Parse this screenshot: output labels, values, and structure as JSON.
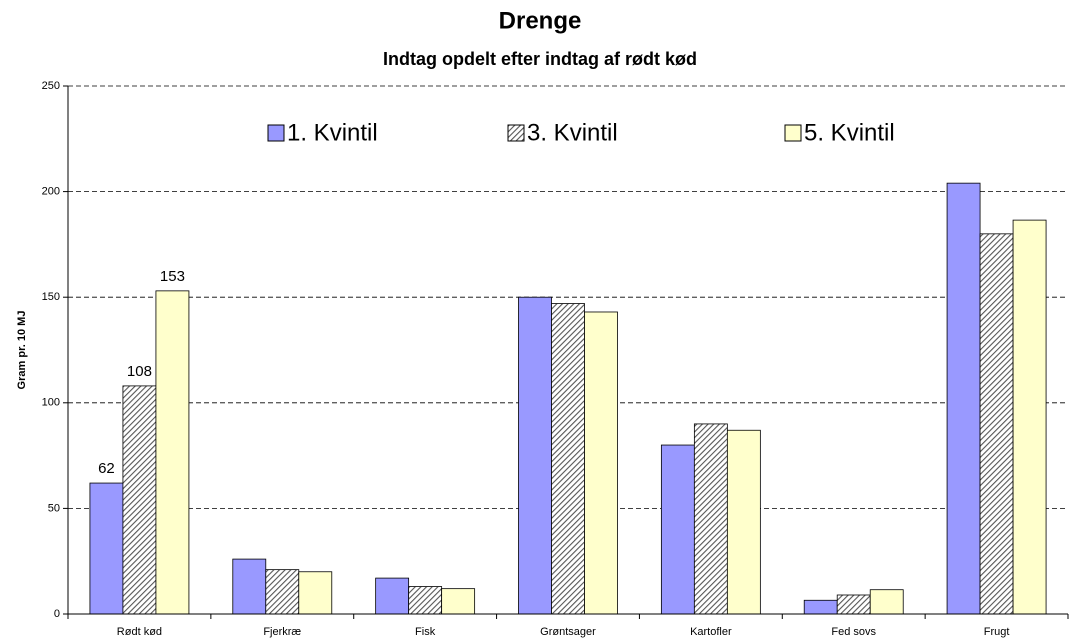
{
  "chart_data": {
    "type": "bar",
    "title": "Drenge",
    "subtitle": "Indtag opdelt efter indtag af rødt kød",
    "y_label": "Gram pr. 10 MJ",
    "categories": [
      "Rødt kød",
      "Fjerkræ",
      "Fisk",
      "Grøntsager",
      "Kartofler",
      "Fed sovs",
      "Frugt"
    ],
    "series": [
      {
        "name": "1. Kvintil",
        "color": "#9999ff",
        "values": [
          62,
          26,
          17,
          150,
          80,
          6.5,
          204
        ],
        "value_labels": [
          "62",
          null,
          null,
          null,
          null,
          null,
          null
        ]
      },
      {
        "name": "3. Kvintil",
        "color": "#808080",
        "pattern": "hatch",
        "values": [
          108,
          21,
          13,
          147,
          90,
          9,
          180
        ],
        "value_labels": [
          "108",
          null,
          null,
          null,
          null,
          null,
          null
        ]
      },
      {
        "name": "5. Kvintil",
        "color": "#ffffcc",
        "values": [
          153,
          20,
          12,
          143,
          87,
          11.5,
          186.5
        ],
        "value_labels": [
          "153",
          null,
          null,
          null,
          null,
          null,
          null
        ]
      }
    ],
    "ylim": [
      0,
      250
    ],
    "yticks": [
      0,
      50,
      100,
      150,
      200,
      250
    ],
    "grid": true,
    "legend": "top"
  }
}
